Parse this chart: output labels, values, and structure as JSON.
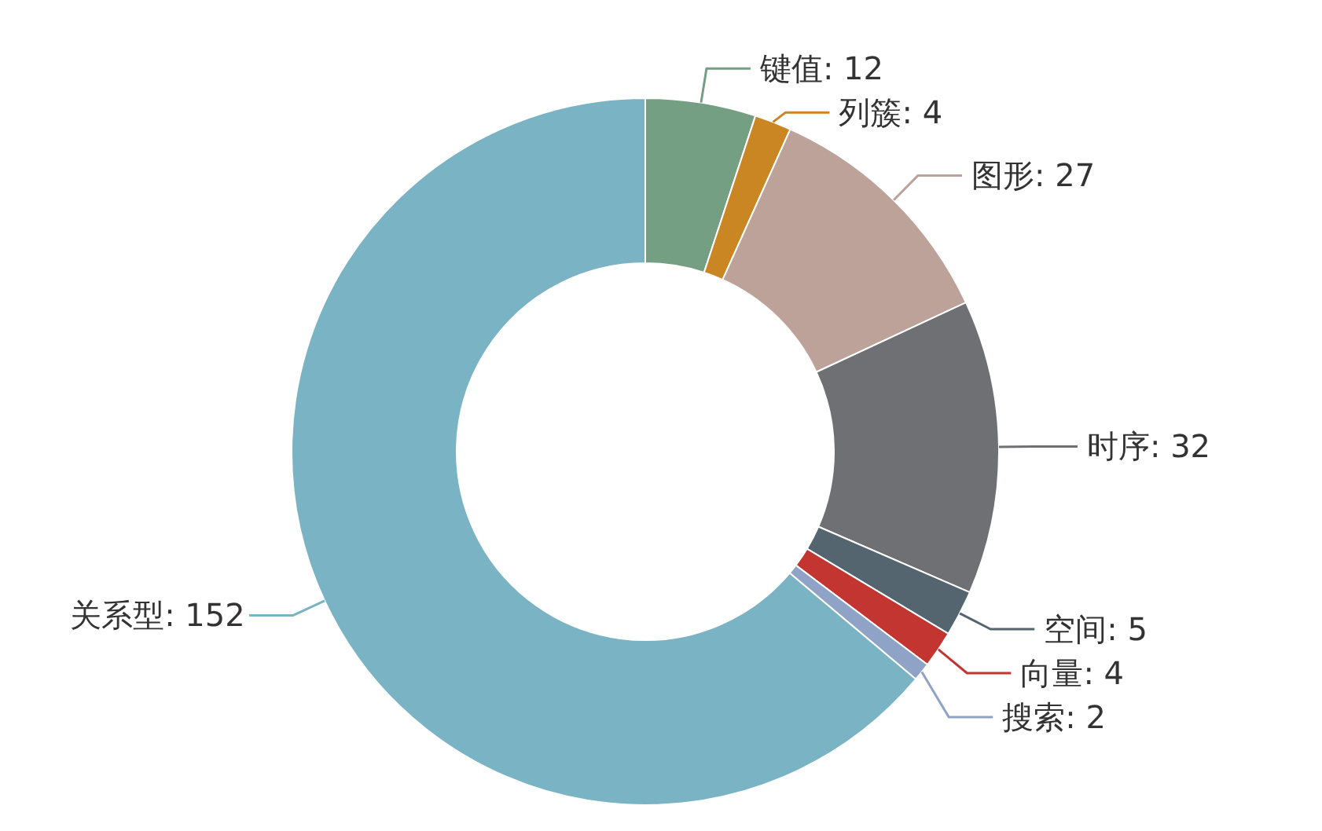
{
  "chart_data": {
    "type": "donut",
    "categories": [
      "键值",
      "列簇",
      "图形",
      "时序",
      "空间",
      "向量",
      "搜索",
      "关系型"
    ],
    "values": [
      12,
      4,
      27,
      32,
      5,
      4,
      2,
      152
    ],
    "colors": [
      "#749f83",
      "#ca8622",
      "#bda29a",
      "#6e7074",
      "#546570",
      "#c23531",
      "#8ea3c6",
      "#7ab3c4"
    ],
    "value_labels": [
      ": 12",
      ": 4",
      ": 27",
      ": 32",
      ": 5",
      ": 4",
      ": 2",
      ": 152"
    ]
  }
}
